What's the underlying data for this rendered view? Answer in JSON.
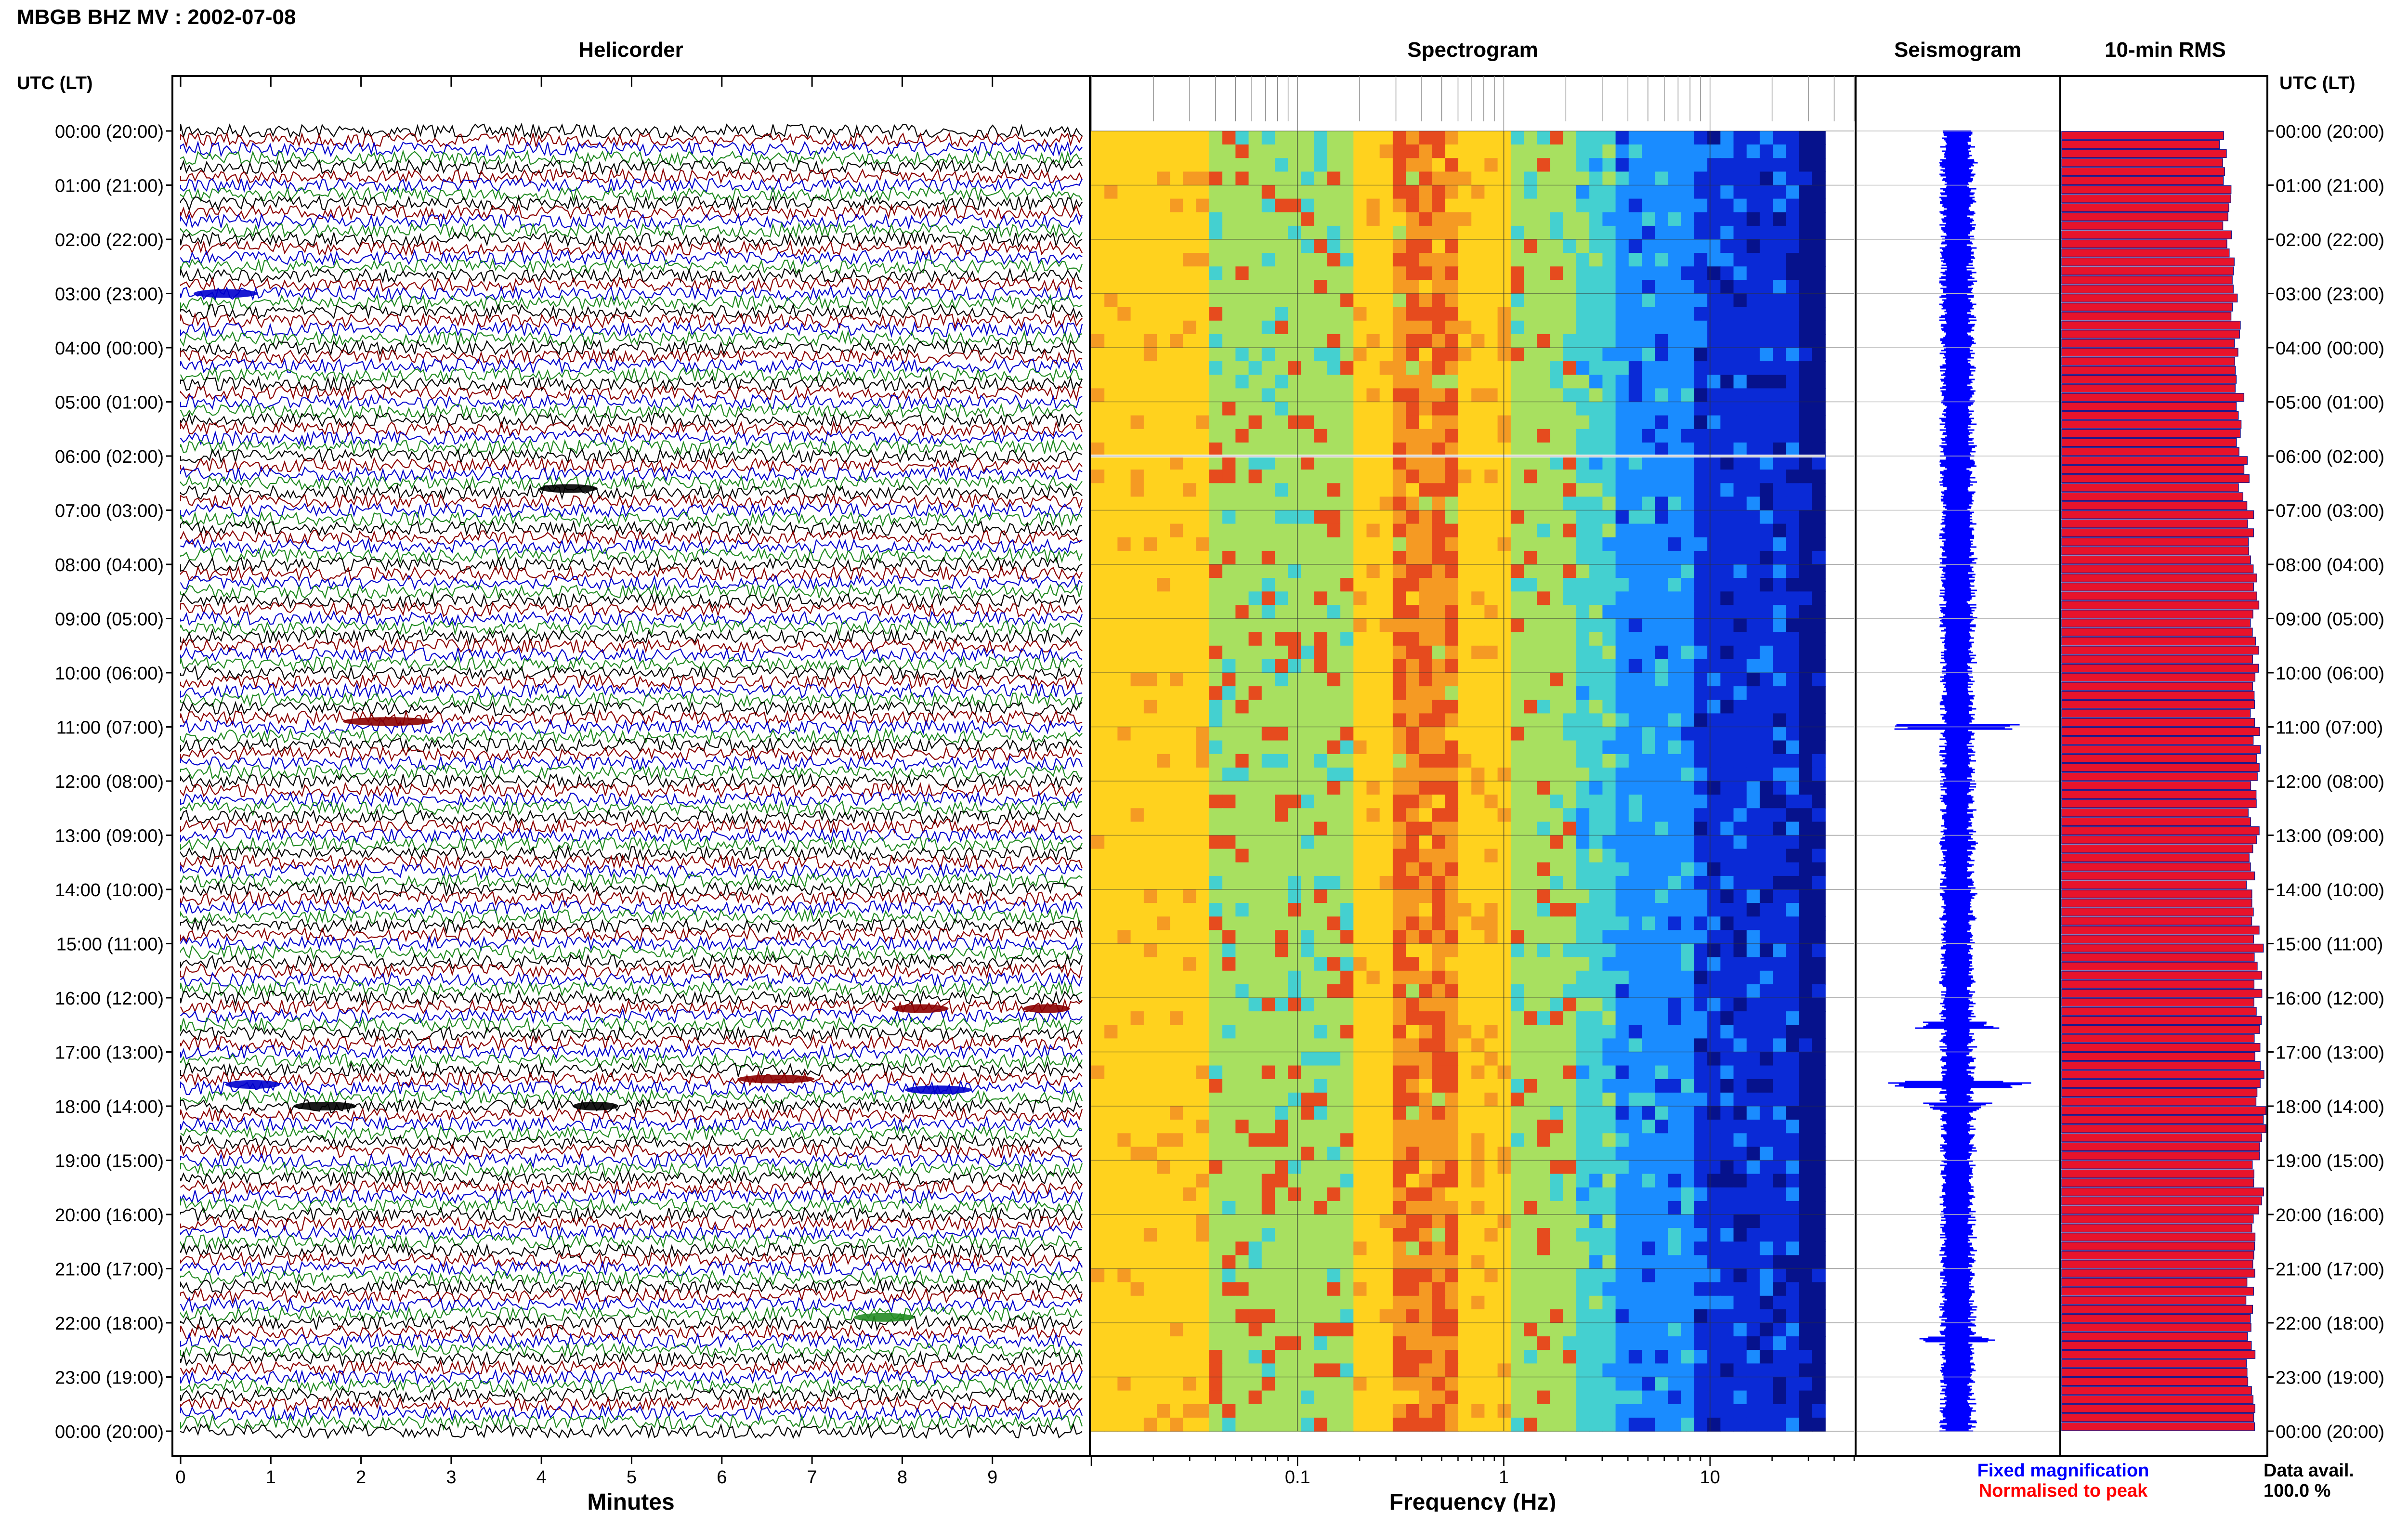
{
  "header": {
    "station_title": "MBGB BHZ MV : 2002-07-08"
  },
  "panels": {
    "helicorder": {
      "title": "Helicorder",
      "xlabel": "Minutes"
    },
    "spectrogram": {
      "title": "Spectrogram",
      "xlabel": "Frequency (Hz)"
    },
    "seismogram": {
      "title": "Seismogram"
    },
    "rms": {
      "title": "10-min RMS"
    }
  },
  "axis_labels": {
    "left_header": "UTC (LT)",
    "right_header": "UTC (LT)"
  },
  "legend": {
    "fixed": "Fixed magnification",
    "normalised": "Normalised to peak",
    "fixed_color": "#0000ff",
    "normalised_color": "#ff0000"
  },
  "data_availability": {
    "label": "Data avail.",
    "value": "100.0 %"
  },
  "colors": {
    "trace_cycle": [
      "#000000",
      "#8b0000",
      "#0000cd",
      "#228b22"
    ],
    "seismogram": "#0000ff",
    "rms_fill": "#e8132b",
    "rms_edge": "#1a1a8c",
    "spectrogram_scale": [
      "#ffd21e",
      "#f59a23",
      "#e64b1e",
      "#a8e060",
      "#44d0d0",
      "#1a8cff",
      "#0a2ad6",
      "#06128c"
    ]
  },
  "chart_data": [
    {
      "type": "line",
      "name": "helicorder",
      "title": "Helicorder",
      "xlabel": "Minutes",
      "x_ticks": [
        "0",
        "1",
        "2",
        "3",
        "4",
        "5",
        "6",
        "7",
        "8",
        "9"
      ],
      "xlim": [
        0,
        10
      ],
      "rows_per_hour": 6,
      "hours": 24,
      "y_tick_labels": [
        "00:00 (20:00)",
        "01:00 (21:00)",
        "02:00 (22:00)",
        "03:00 (23:00)",
        "04:00 (00:00)",
        "05:00 (01:00)",
        "06:00 (02:00)",
        "07:00 (03:00)",
        "08:00 (04:00)",
        "09:00 (05:00)",
        "10:00 (06:00)",
        "11:00 (07:00)",
        "12:00 (08:00)",
        "13:00 (09:00)",
        "14:00 (10:00)",
        "15:00 (11:00)",
        "16:00 (12:00)",
        "17:00 (13:00)",
        "18:00 (14:00)",
        "19:00 (15:00)",
        "20:00 (16:00)",
        "21:00 (17:00)",
        "22:00 (18:00)",
        "23:00 (19:00)",
        "00:00 (20:00)"
      ],
      "events": [
        {
          "hour": 3.0,
          "minute": 0.5
        },
        {
          "hour": 6.6,
          "minute": 4.3
        },
        {
          "hour": 10.9,
          "minute": 2.3
        },
        {
          "hour": 16.2,
          "minute": 8.2
        },
        {
          "hour": 16.2,
          "minute": 9.6
        },
        {
          "hour": 17.6,
          "minute": 0.8
        },
        {
          "hour": 17.5,
          "minute": 6.6
        },
        {
          "hour": 17.7,
          "minute": 8.4
        },
        {
          "hour": 18.0,
          "minute": 1.6
        },
        {
          "hour": 18.0,
          "minute": 4.6
        },
        {
          "hour": 21.9,
          "minute": 7.8
        }
      ]
    },
    {
      "type": "heatmap",
      "name": "spectrogram",
      "title": "Spectrogram",
      "xlabel": "Frequency (Hz)",
      "x_scale": "log",
      "xlim": [
        0.01,
        50
      ],
      "x_ticks": [
        "0.1",
        "1",
        "10"
      ],
      "x_tick_values": [
        0.1,
        1,
        10
      ],
      "hours": 24,
      "peak_frequency_hz": 0.4,
      "data_gap_hour": 6.0
    },
    {
      "type": "line",
      "name": "seismogram",
      "title": "Seismogram",
      "hours": 24,
      "bursts": [
        {
          "hour": 11.0,
          "amp": 0.75
        },
        {
          "hour": 16.5,
          "amp": 0.45
        },
        {
          "hour": 17.6,
          "amp": 0.85
        },
        {
          "hour": 18.0,
          "amp": 0.4
        },
        {
          "hour": 22.3,
          "amp": 0.45
        }
      ]
    },
    {
      "type": "bar",
      "name": "rms",
      "title": "10-min RMS",
      "orientation": "horizontal",
      "bins_per_hour": 6,
      "hours": 24,
      "hourly_level": [
        0.8,
        0.82,
        0.84,
        0.86,
        0.88,
        0.89,
        0.9,
        0.93,
        0.95,
        0.95,
        0.95,
        0.96,
        0.95,
        0.94,
        0.95,
        0.97,
        0.97,
        0.98,
        0.99,
        0.97,
        0.95,
        0.93,
        0.93,
        0.93
      ],
      "scale": "normalised to peak"
    }
  ]
}
